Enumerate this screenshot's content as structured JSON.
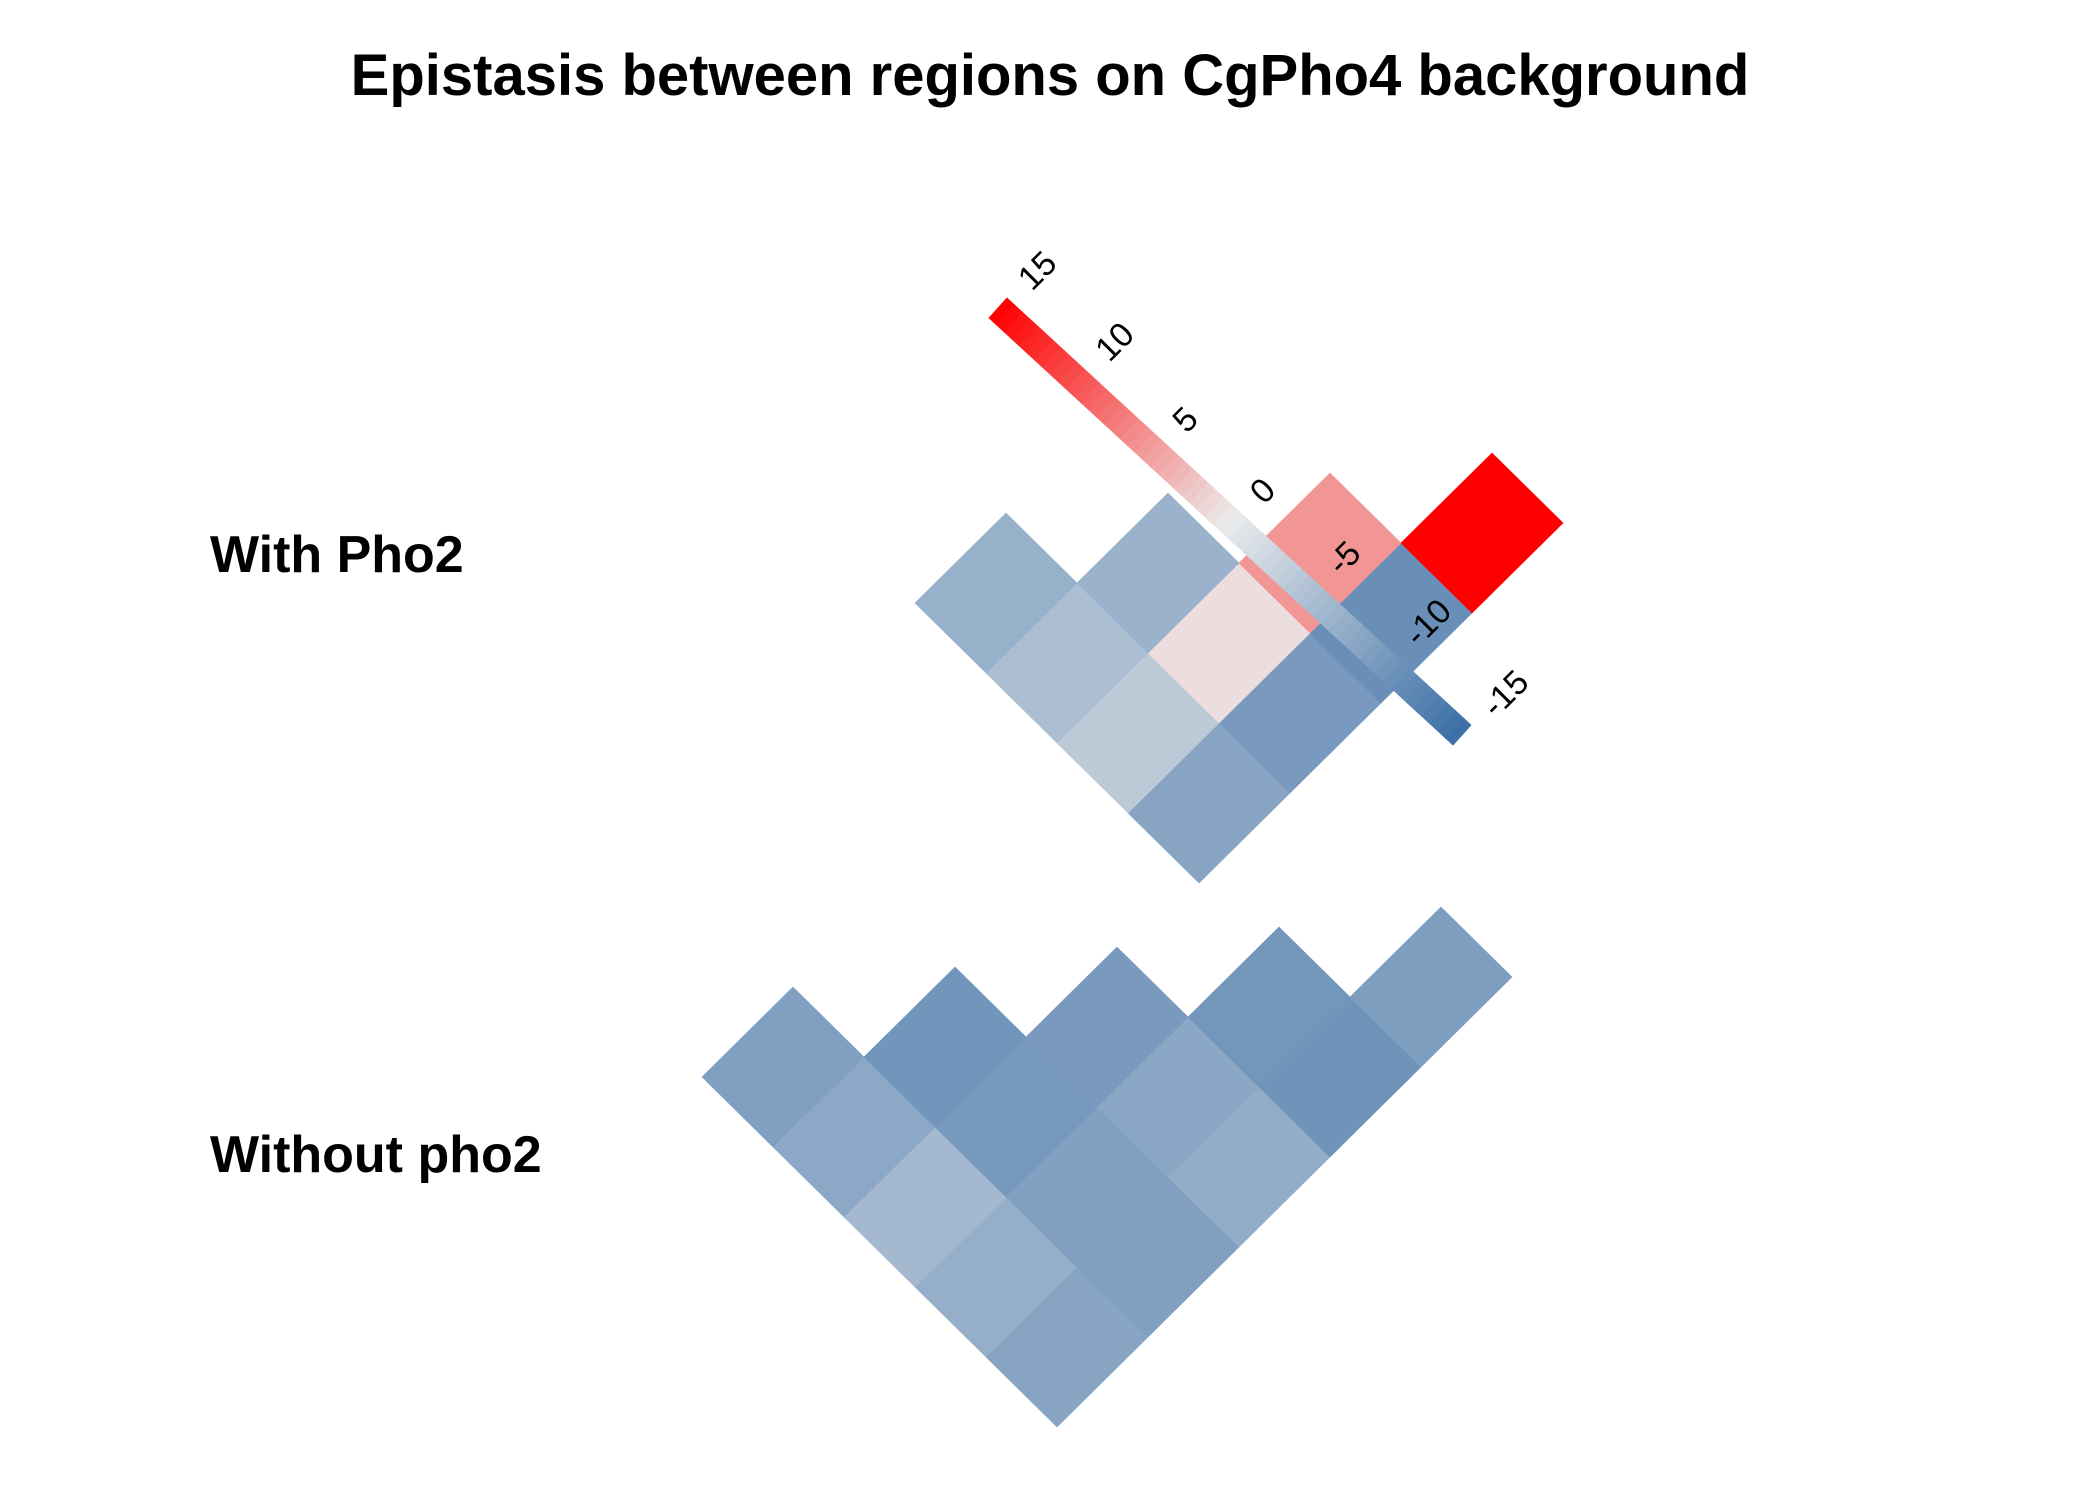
{
  "chart_data": {
    "type": "heatmap",
    "title": "Epistasis between regions on CgPho4 background",
    "row_labels": [
      "With Pho2",
      "Without pho2"
    ],
    "panels": [
      {
        "name": "With Pho2",
        "values": [
          [
            -8.5,
            -9.7,
            -11,
            15
          ],
          [
            -4,
            0.8,
            5.5
          ],
          [
            -5.4,
            -6.9
          ],
          [
            -7
          ]
        ]
      },
      {
        "name": "Without pho2",
        "values": [
          [
            -8.5,
            -9,
            -7.5,
            -10.5,
            -9.2
          ],
          [
            -7.3,
            -9.1,
            -8.2,
            -10.2
          ],
          [
            -6,
            -9.8,
            -9.7
          ],
          [
            -8,
            -10.3
          ],
          [
            -9
          ]
        ]
      }
    ],
    "colorbar": {
      "ticks": [
        15,
        10,
        5,
        0,
        -5,
        -10,
        -15
      ],
      "range": [
        -15,
        15
      ],
      "colors": {
        "high": "#ff0000",
        "mid": "#ebebeb",
        "low": "#3a6ea5"
      }
    }
  }
}
